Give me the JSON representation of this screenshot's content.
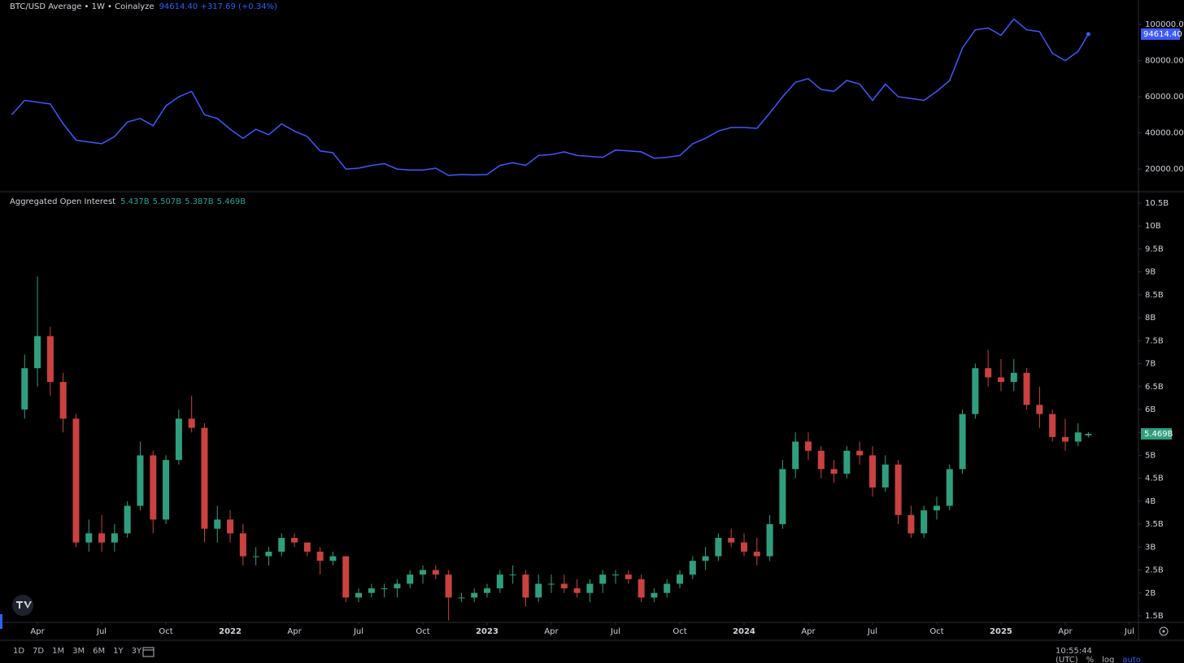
{
  "chart_data": [
    {
      "type": "line",
      "title": "BTC/USD Average • 1W • Coinalyze",
      "header_values": "94614.40 +317.69 (+0.34%)",
      "last_label": "94614.40",
      "xlim": [
        2021.12,
        2025.535
      ],
      "ylim": [
        7900,
        113500
      ],
      "yticks": [
        {
          "value": 20000,
          "label": "20000.00"
        },
        {
          "value": 40000,
          "label": "40000.00"
        },
        {
          "value": 60000,
          "label": "60000.00"
        },
        {
          "value": 80000,
          "label": "80000.00"
        },
        {
          "value": 100000,
          "label": "100000.00"
        }
      ],
      "x": [
        2021.15,
        2021.2,
        2021.25,
        2021.3,
        2021.35,
        2021.4,
        2021.45,
        2021.5,
        2021.55,
        2021.6,
        2021.65,
        2021.7,
        2021.75,
        2021.8,
        2021.85,
        2021.9,
        2021.95,
        2022,
        2022.05,
        2022.1,
        2022.15,
        2022.2,
        2022.25,
        2022.3,
        2022.35,
        2022.4,
        2022.45,
        2022.5,
        2022.55,
        2022.6,
        2022.65,
        2022.7,
        2022.75,
        2022.8,
        2022.85,
        2022.9,
        2022.95,
        2023,
        2023.05,
        2023.1,
        2023.15,
        2023.2,
        2023.25,
        2023.3,
        2023.35,
        2023.4,
        2023.45,
        2023.5,
        2023.55,
        2023.6,
        2023.65,
        2023.7,
        2023.75,
        2023.8,
        2023.85,
        2023.9,
        2023.95,
        2024,
        2024.05,
        2024.1,
        2024.15,
        2024.2,
        2024.25,
        2024.3,
        2024.35,
        2024.4,
        2024.45,
        2024.5,
        2024.55,
        2024.6,
        2024.65,
        2024.7,
        2024.75,
        2024.8,
        2024.85,
        2024.9,
        2024.95,
        2025,
        2025.05,
        2025.1,
        2025.15,
        2025.2,
        2025.25,
        2025.3,
        2025.34
      ],
      "series": [
        {
          "color": "#3d5afe",
          "values": [
            50000,
            58000,
            57000,
            56000,
            45000,
            36000,
            35000,
            34000,
            38000,
            46000,
            48000,
            44000,
            55000,
            60000,
            63000,
            50000,
            48000,
            42000,
            37000,
            42000,
            39000,
            45000,
            41000,
            38000,
            30000,
            29000,
            20000,
            20500,
            22000,
            23000,
            20000,
            19500,
            19500,
            20500,
            16500,
            17000,
            16800,
            17000,
            22000,
            23500,
            22000,
            27500,
            28000,
            29500,
            27500,
            27000,
            26500,
            30500,
            30000,
            29500,
            26000,
            26500,
            27500,
            34000,
            37000,
            41000,
            43000,
            43000,
            42500,
            51000,
            60000,
            68000,
            70000,
            64000,
            63000,
            69000,
            67000,
            58000,
            67000,
            60000,
            59000,
            58000,
            63000,
            69000,
            87000,
            97000,
            98000,
            94000,
            103000,
            97000,
            96000,
            84000,
            80000,
            85000,
            94614.4
          ]
        }
      ]
    },
    {
      "type": "candlestick",
      "title": "Aggregated Open Interest",
      "legend_values": [
        "5.437B",
        "5.507B",
        "5.387B",
        "5.469B"
      ],
      "last_label": "5.469B",
      "up_color": "#2f9e7f",
      "down_color": "#c9423f",
      "xlim": [
        2021.12,
        2025.535
      ],
      "ylim": [
        1.358,
        10.73
      ],
      "xticks": [
        {
          "value": 2021.25,
          "label": "Apr"
        },
        {
          "value": 2021.5,
          "label": "Jul"
        },
        {
          "value": 2021.75,
          "label": "Oct"
        },
        2022,
        {
          "value": 2022.25,
          "label": "Apr"
        },
        {
          "value": 2022.5,
          "label": "Jul"
        },
        {
          "value": 2022.75,
          "label": "Oct"
        },
        2023,
        {
          "value": 2023.25,
          "label": "Apr"
        },
        {
          "value": 2023.5,
          "label": "Jul"
        },
        {
          "value": 2023.75,
          "label": "Oct"
        },
        2024,
        {
          "value": 2024.25,
          "label": "Apr"
        },
        {
          "value": 2024.5,
          "label": "Jul"
        },
        {
          "value": 2024.75,
          "label": "Oct"
        },
        2025,
        {
          "value": 2025.25,
          "label": "Apr"
        },
        {
          "value": 2025.5,
          "label": "Jul"
        }
      ],
      "yticks": [
        {
          "value": 1.5,
          "label": "1.5B"
        },
        {
          "value": 2,
          "label": "2B"
        },
        {
          "value": 2.5,
          "label": "2.5B"
        },
        {
          "value": 3,
          "label": "3B"
        },
        {
          "value": 3.5,
          "label": "3.5B"
        },
        {
          "value": 4,
          "label": "4B"
        },
        {
          "value": 4.5,
          "label": "4.5B"
        },
        {
          "value": 5,
          "label": "5B"
        },
        {
          "value": 5.5,
          "label": "5.5B"
        },
        {
          "value": 6,
          "label": "6B"
        },
        {
          "value": 6.5,
          "label": "6.5B"
        },
        {
          "value": 7,
          "label": "7B"
        },
        {
          "value": 7.5,
          "label": "7.5B"
        },
        {
          "value": 8,
          "label": "8B"
        },
        {
          "value": 8.5,
          "label": "8.5B"
        },
        {
          "value": 9,
          "label": "9B"
        },
        {
          "value": 9.5,
          "label": "9.5B"
        },
        {
          "value": 10,
          "label": "10B"
        },
        {
          "value": 10.5,
          "label": "10.5B"
        }
      ],
      "x": [
        2021.2,
        2021.25,
        2021.3,
        2021.35,
        2021.4,
        2021.45,
        2021.5,
        2021.55,
        2021.6,
        2021.65,
        2021.7,
        2021.75,
        2021.8,
        2021.85,
        2021.9,
        2021.95,
        2022,
        2022.05,
        2022.1,
        2022.15,
        2022.2,
        2022.25,
        2022.3,
        2022.35,
        2022.4,
        2022.45,
        2022.5,
        2022.55,
        2022.6,
        2022.65,
        2022.7,
        2022.75,
        2022.8,
        2022.85,
        2022.9,
        2022.95,
        2023,
        2023.05,
        2023.1,
        2023.15,
        2023.2,
        2023.25,
        2023.3,
        2023.35,
        2023.4,
        2023.45,
        2023.5,
        2023.55,
        2023.6,
        2023.65,
        2023.7,
        2023.75,
        2023.8,
        2023.85,
        2023.9,
        2023.95,
        2024,
        2024.05,
        2024.1,
        2024.15,
        2024.2,
        2024.25,
        2024.3,
        2024.35,
        2024.4,
        2024.45,
        2024.5,
        2024.55,
        2024.6,
        2024.65,
        2024.7,
        2024.75,
        2024.8,
        2024.85,
        2024.9,
        2024.95,
        2025,
        2025.05,
        2025.1,
        2025.15,
        2025.2,
        2025.25,
        2025.3,
        2025.34
      ],
      "open": [
        6.0,
        6.9,
        7.6,
        6.6,
        5.8,
        3.1,
        3.3,
        3.1,
        3.3,
        3.9,
        5.0,
        3.6,
        4.9,
        5.8,
        5.6,
        3.4,
        3.6,
        3.3,
        2.8,
        2.8,
        2.9,
        3.2,
        3.1,
        2.9,
        2.7,
        2.8,
        1.9,
        2.0,
        2.1,
        2.1,
        2.2,
        2.4,
        2.5,
        2.4,
        1.9,
        1.9,
        2.0,
        2.1,
        2.4,
        2.4,
        1.9,
        2.2,
        2.2,
        2.1,
        2.0,
        2.2,
        2.4,
        2.4,
        2.3,
        1.9,
        2.0,
        2.2,
        2.4,
        2.7,
        2.8,
        3.2,
        3.1,
        2.9,
        2.8,
        3.5,
        4.7,
        5.3,
        5.1,
        4.7,
        4.6,
        5.1,
        5.0,
        4.3,
        4.8,
        3.7,
        3.3,
        3.8,
        3.9,
        4.7,
        5.9,
        6.9,
        6.7,
        6.6,
        6.8,
        6.1,
        5.9,
        5.4,
        5.3,
        5.437
      ],
      "high": [
        7.2,
        8.9,
        7.8,
        6.8,
        5.9,
        3.6,
        3.7,
        3.5,
        4.0,
        5.3,
        5.1,
        5.0,
        6.0,
        6.3,
        5.7,
        3.9,
        3.8,
        3.5,
        3.0,
        3.0,
        3.3,
        3.3,
        3.1,
        3.0,
        2.9,
        2.8,
        2.1,
        2.2,
        2.2,
        2.3,
        2.5,
        2.6,
        2.6,
        2.5,
        2.0,
        2.1,
        2.2,
        2.5,
        2.6,
        2.5,
        2.4,
        2.4,
        2.4,
        2.3,
        2.3,
        2.5,
        2.5,
        2.5,
        2.4,
        2.1,
        2.3,
        2.5,
        2.8,
        3.0,
        3.3,
        3.4,
        3.3,
        3.2,
        3.7,
        4.9,
        5.5,
        5.5,
        5.2,
        4.9,
        5.2,
        5.3,
        5.2,
        5.0,
        4.9,
        3.9,
        3.9,
        4.1,
        4.8,
        6.0,
        7.0,
        7.3,
        7.1,
        7.1,
        6.9,
        6.5,
        6.0,
        5.8,
        5.7,
        5.507
      ],
      "low": [
        5.8,
        6.5,
        6.3,
        5.5,
        3.0,
        2.9,
        2.9,
        2.9,
        3.2,
        3.8,
        3.3,
        3.5,
        4.8,
        5.5,
        3.1,
        3.1,
        3.1,
        2.6,
        2.6,
        2.6,
        2.8,
        3.0,
        2.8,
        2.4,
        2.6,
        1.8,
        1.8,
        1.9,
        1.9,
        1.9,
        2.1,
        2.2,
        2.3,
        1.4,
        1.8,
        1.8,
        1.9,
        2.0,
        2.2,
        1.7,
        1.8,
        2.0,
        2.0,
        1.9,
        1.8,
        2.0,
        2.2,
        2.2,
        1.8,
        1.8,
        1.9,
        2.1,
        2.3,
        2.5,
        2.7,
        3.0,
        2.8,
        2.6,
        2.7,
        3.4,
        4.5,
        4.9,
        4.5,
        4.4,
        4.5,
        4.8,
        4.1,
        4.2,
        3.5,
        3.2,
        3.2,
        3.6,
        3.8,
        4.6,
        5.8,
        6.5,
        6.4,
        6.4,
        6.0,
        5.6,
        5.3,
        5.1,
        5.2,
        5.387
      ],
      "close": [
        6.9,
        7.6,
        6.6,
        5.8,
        3.1,
        3.3,
        3.1,
        3.3,
        3.9,
        5.0,
        3.6,
        4.9,
        5.8,
        5.6,
        3.4,
        3.6,
        3.3,
        2.8,
        2.8,
        2.9,
        3.2,
        3.1,
        2.9,
        2.7,
        2.8,
        1.9,
        2.0,
        2.1,
        2.1,
        2.2,
        2.4,
        2.5,
        2.4,
        1.9,
        1.9,
        2.0,
        2.1,
        2.4,
        2.4,
        1.9,
        2.2,
        2.2,
        2.1,
        2.0,
        2.2,
        2.4,
        2.4,
        2.3,
        1.9,
        2.0,
        2.2,
        2.4,
        2.7,
        2.8,
        3.2,
        3.1,
        2.9,
        2.8,
        3.5,
        4.7,
        5.3,
        5.1,
        4.7,
        4.6,
        5.1,
        5.0,
        4.3,
        4.8,
        3.7,
        3.3,
        3.8,
        3.9,
        4.7,
        5.9,
        6.9,
        6.7,
        6.6,
        6.8,
        6.1,
        5.9,
        5.4,
        5.3,
        5.5,
        5.469
      ]
    }
  ],
  "toolbar": {
    "ranges": [
      "1D",
      "7D",
      "1M",
      "3M",
      "6M",
      "1Y",
      "3Y"
    ],
    "time": "10:55:44 (UTC)",
    "percent": "%",
    "log": "log",
    "auto": "auto"
  }
}
